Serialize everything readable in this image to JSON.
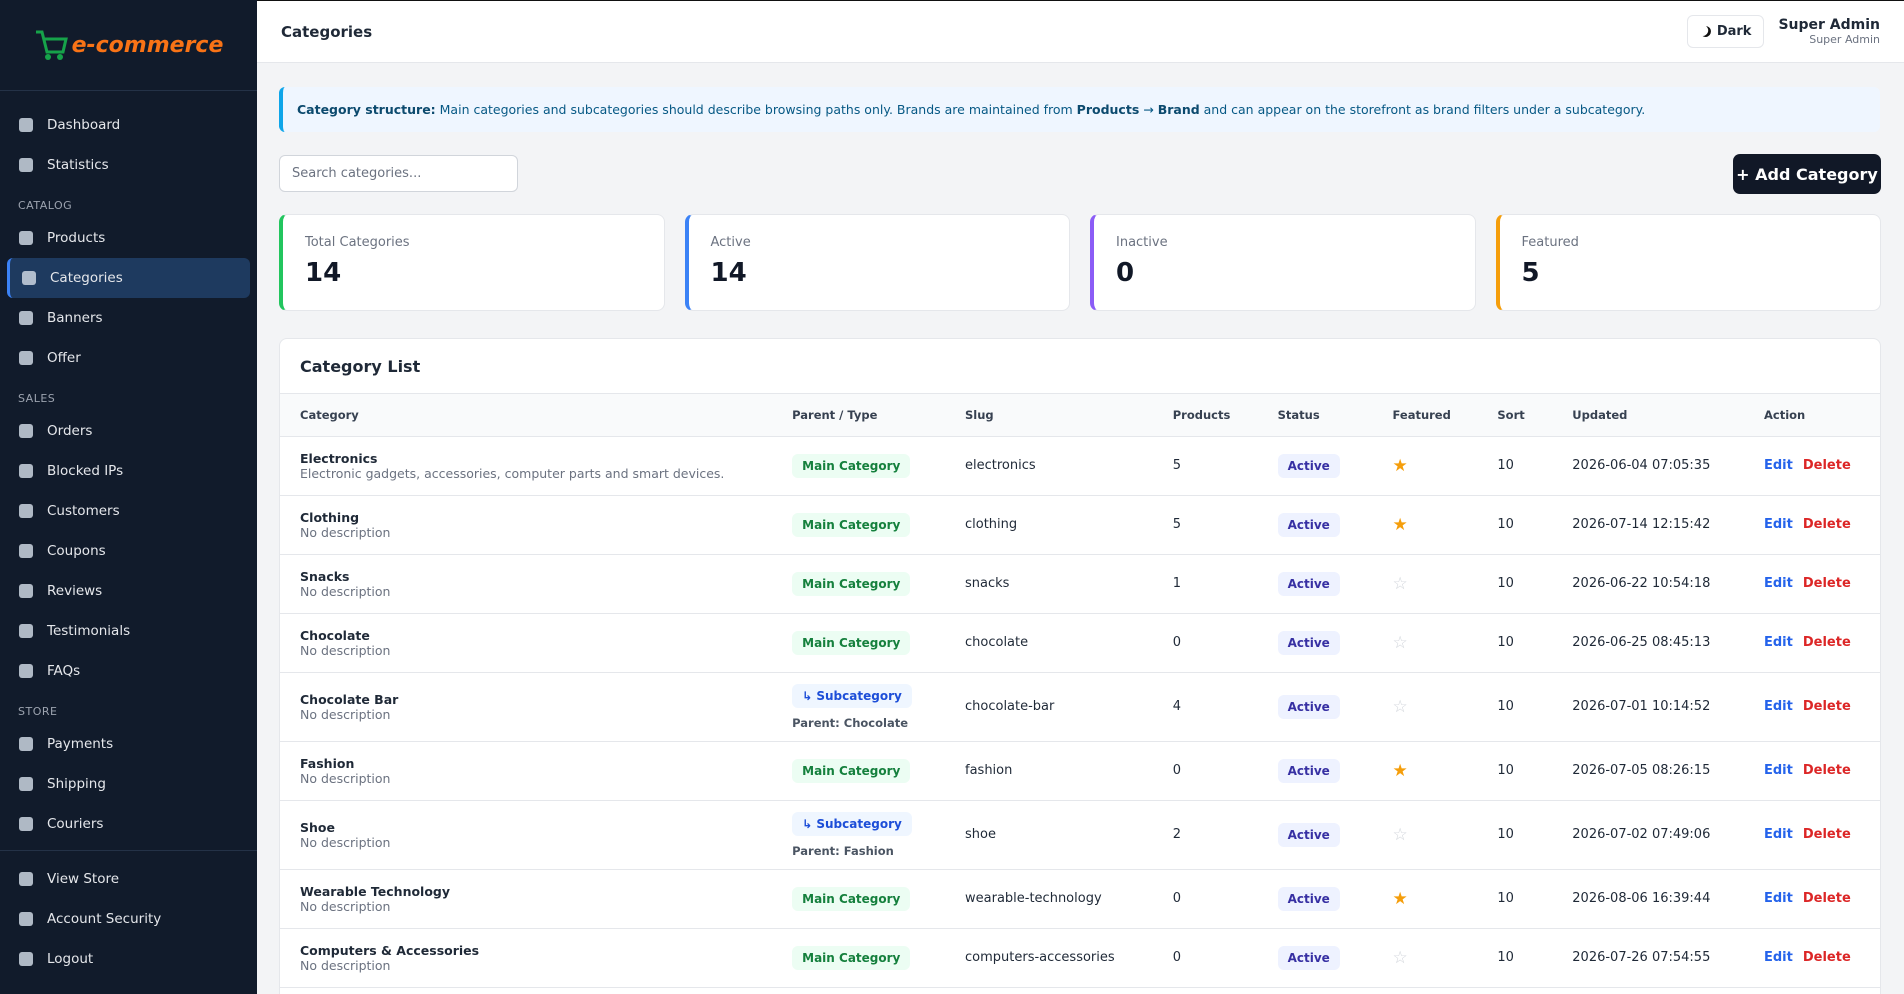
{
  "sidebar": {
    "logo": "e-commerce",
    "groups": [
      {
        "items": [
          "Dashboard",
          "Statistics"
        ]
      },
      {
        "title": "CATALOG",
        "items": [
          "Products",
          "Categories",
          "Banners",
          "Offer"
        ]
      },
      {
        "title": "SALES",
        "items": [
          "Orders",
          "Blocked IPs",
          "Customers",
          "Coupons",
          "Reviews",
          "Testimonials",
          "FAQs"
        ]
      },
      {
        "title": "STORE",
        "items": [
          "Payments",
          "Shipping",
          "Couriers"
        ]
      }
    ],
    "active": "Categories",
    "bottom": [
      "View Store",
      "Account Security",
      "Logout"
    ]
  },
  "header": {
    "title": "Categories",
    "theme_button": "Dark",
    "user_name": "Super Admin",
    "user_role": "Super Admin"
  },
  "notice": [
    {
      "text": "Category structure:",
      "bold": true
    },
    {
      "text": " Main categories and subcategories should describe browsing paths only. Brands are maintained from ",
      "bold": false
    },
    {
      "text": "Products",
      "bold": true
    },
    {
      "text": " → ",
      "bold": false
    },
    {
      "text": "Brand",
      "bold": true
    },
    {
      "text": " and can appear on the storefront as brand filters under a subcategory.",
      "bold": false
    }
  ],
  "search_placeholder": "Search categories...",
  "add_button": "+ Add Category",
  "stats": [
    {
      "label": "Total Categories",
      "value": 14
    },
    {
      "label": "Active",
      "value": 14
    },
    {
      "label": "Inactive",
      "value": 0
    },
    {
      "label": "Featured",
      "value": 5
    }
  ],
  "table": {
    "title": "Category List",
    "columns": [
      "Category",
      "Parent / Type",
      "Slug",
      "Products",
      "Status",
      "Featured",
      "Sort",
      "Updated",
      "Action"
    ],
    "edit": "Edit",
    "delete": "Delete",
    "rows": [
      {
        "name": "Electronics",
        "description": "Electronic gadgets, accessories, computer parts and smart devices.",
        "type": "Main Category",
        "slug": "electronics",
        "products": 5,
        "status": "Active",
        "featured": true,
        "sort": 10,
        "updated": "2026-06-04 07:05:35"
      },
      {
        "name": "Clothing",
        "description": "No description",
        "type": "Main Category",
        "slug": "clothing",
        "products": 5,
        "status": "Active",
        "featured": true,
        "sort": 10,
        "updated": "2026-07-14 12:15:42"
      },
      {
        "name": "Snacks",
        "description": "No description",
        "type": "Main Category",
        "slug": "snacks",
        "products": 1,
        "status": "Active",
        "featured": false,
        "sort": 10,
        "updated": "2026-06-22 10:54:18"
      },
      {
        "name": "Chocolate",
        "description": "No description",
        "type": "Main Category",
        "slug": "chocolate",
        "products": 0,
        "status": "Active",
        "featured": false,
        "sort": 10,
        "updated": "2026-06-25 08:45:13"
      },
      {
        "name": "Chocolate Bar",
        "description": "No description",
        "type": "↳ Subcategory",
        "parent": "Parent: Chocolate",
        "slug": "chocolate-bar",
        "products": 4,
        "status": "Active",
        "featured": false,
        "sort": 10,
        "updated": "2026-07-01 10:14:52"
      },
      {
        "name": "Fashion",
        "description": "No description",
        "type": "Main Category",
        "slug": "fashion",
        "products": 0,
        "status": "Active",
        "featured": true,
        "sort": 10,
        "updated": "2026-07-05 08:26:15"
      },
      {
        "name": "Shoe",
        "description": "No description",
        "type": "↳ Subcategory",
        "parent": "Parent: Fashion",
        "slug": "shoe",
        "products": 2,
        "status": "Active",
        "featured": false,
        "sort": 10,
        "updated": "2026-07-02 07:49:06"
      },
      {
        "name": "Wearable Technology",
        "description": "No description",
        "type": "Main Category",
        "slug": "wearable-technology",
        "products": 0,
        "status": "Active",
        "featured": true,
        "sort": 10,
        "updated": "2026-08-06 16:39:44"
      },
      {
        "name": "Computers & Accessories",
        "description": "No description",
        "type": "Main Category",
        "slug": "computers-accessories",
        "products": 0,
        "status": "Active",
        "featured": false,
        "sort": 10,
        "updated": "2026-07-26 07:54:55"
      }
    ]
  }
}
